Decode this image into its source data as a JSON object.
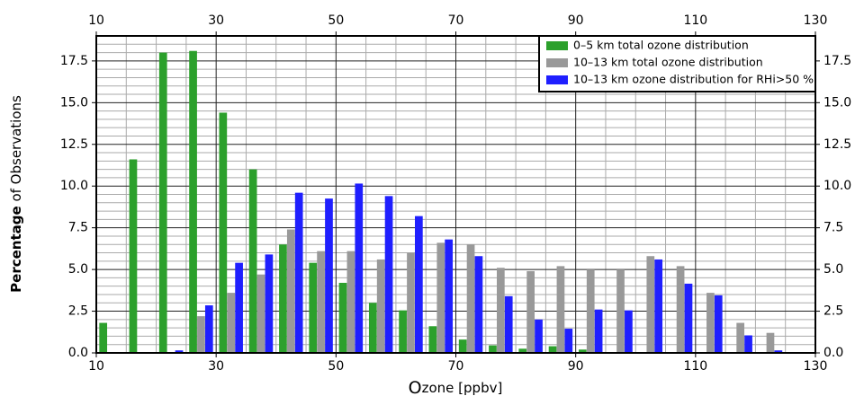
{
  "chart_data": {
    "type": "histogram",
    "xlabel": "Ozone [ppbv]",
    "ylabel": "Percentage of Observations",
    "bins": [
      10,
      15,
      20,
      25,
      30,
      35,
      40,
      45,
      50,
      55,
      60,
      65,
      70,
      75,
      80,
      85,
      90,
      95,
      100,
      105,
      110,
      115,
      120,
      125,
      130
    ],
    "series": [
      {
        "name": "0–5 km total ozone distribution",
        "color": "#2ca02c",
        "values": [
          1.8,
          11.6,
          18.0,
          18.1,
          14.4,
          11.0,
          6.5,
          5.4,
          4.2,
          3.0,
          2.55,
          1.6,
          0.8,
          0.45,
          0.25,
          0.4,
          0.2,
          0,
          0,
          0,
          0,
          0,
          0,
          0
        ]
      },
      {
        "name": "10–13 km total ozone distribution",
        "color": "#999999",
        "values": [
          0,
          0,
          0,
          2.2,
          3.6,
          4.7,
          7.4,
          6.1,
          6.1,
          5.6,
          6.0,
          6.6,
          6.5,
          5.1,
          4.9,
          5.2,
          5.0,
          5.0,
          5.8,
          5.2,
          3.6,
          1.8,
          1.2,
          0
        ]
      },
      {
        "name": "10–13 km ozone distribution for RHi>50 %",
        "color": "#1f1fff",
        "values": [
          0,
          0,
          0.15,
          2.85,
          5.4,
          5.9,
          9.6,
          9.25,
          10.15,
          9.4,
          8.2,
          6.8,
          5.8,
          3.4,
          2.0,
          1.45,
          2.6,
          2.55,
          5.6,
          4.15,
          3.45,
          1.05,
          0.15,
          0
        ]
      }
    ],
    "xlim": [
      10,
      130
    ],
    "xticks": [
      10,
      30,
      50,
      70,
      90,
      110,
      130
    ],
    "ylim": [
      0,
      19
    ],
    "yticks": [
      {
        "value": 0,
        "label": "0.0"
      },
      2.5,
      {
        "value": 5,
        "label": "5.0"
      },
      7.5,
      {
        "value": 10,
        "label": "10.0"
      },
      12.5,
      {
        "value": 15,
        "label": "15.0"
      },
      17.5
    ],
    "grid": true,
    "legend": "upper right"
  }
}
